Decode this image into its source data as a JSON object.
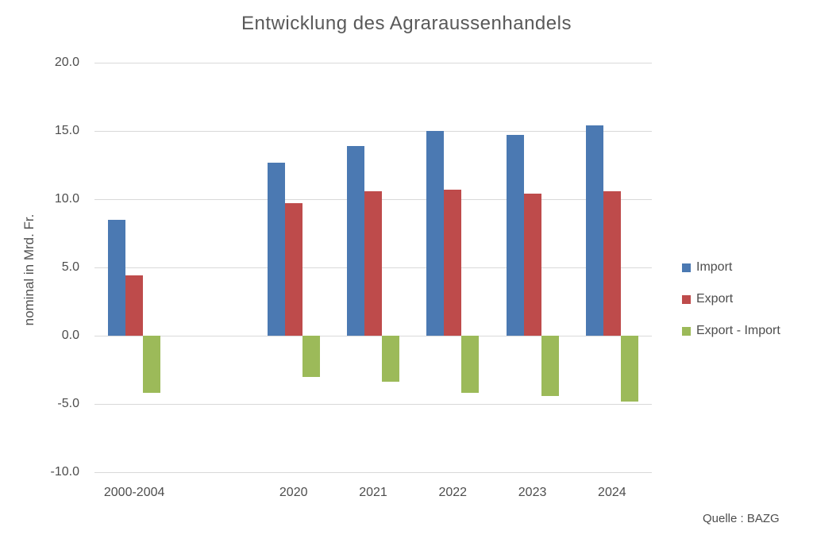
{
  "chart_data": {
    "type": "bar",
    "title": "Entwicklung des Agraraussenhandels",
    "xlabel": "",
    "ylabel": "nominal in Mrd. Fr.",
    "source": "Quelle : BAZG",
    "categories": [
      "2000-2004",
      "2020",
      "2021",
      "2022",
      "2023",
      "2024"
    ],
    "series": [
      {
        "name": "Import",
        "color": "#4b79b2",
        "values": [
          8.5,
          12.7,
          13.9,
          15.0,
          14.7,
          15.4
        ]
      },
      {
        "name": "Export",
        "color": "#be4b4b",
        "values": [
          4.4,
          9.7,
          10.6,
          10.7,
          10.4,
          10.6
        ]
      },
      {
        "name": "Export - Import",
        "color": "#9cba59",
        "values": [
          -4.2,
          -3.0,
          -3.4,
          -4.2,
          -4.4,
          -4.8
        ]
      }
    ],
    "y_tick_labels": [
      "20.0",
      "15.0",
      "10.0",
      "5.0",
      "0.0",
      "-5.0",
      "-10.0"
    ],
    "ylim": [
      -10,
      20
    ],
    "grid": true,
    "gridline_color": "#d9d9d9",
    "legend_position": "right",
    "category_slots": [
      0,
      2,
      3,
      4,
      5,
      6
    ],
    "total_slots": 7
  }
}
